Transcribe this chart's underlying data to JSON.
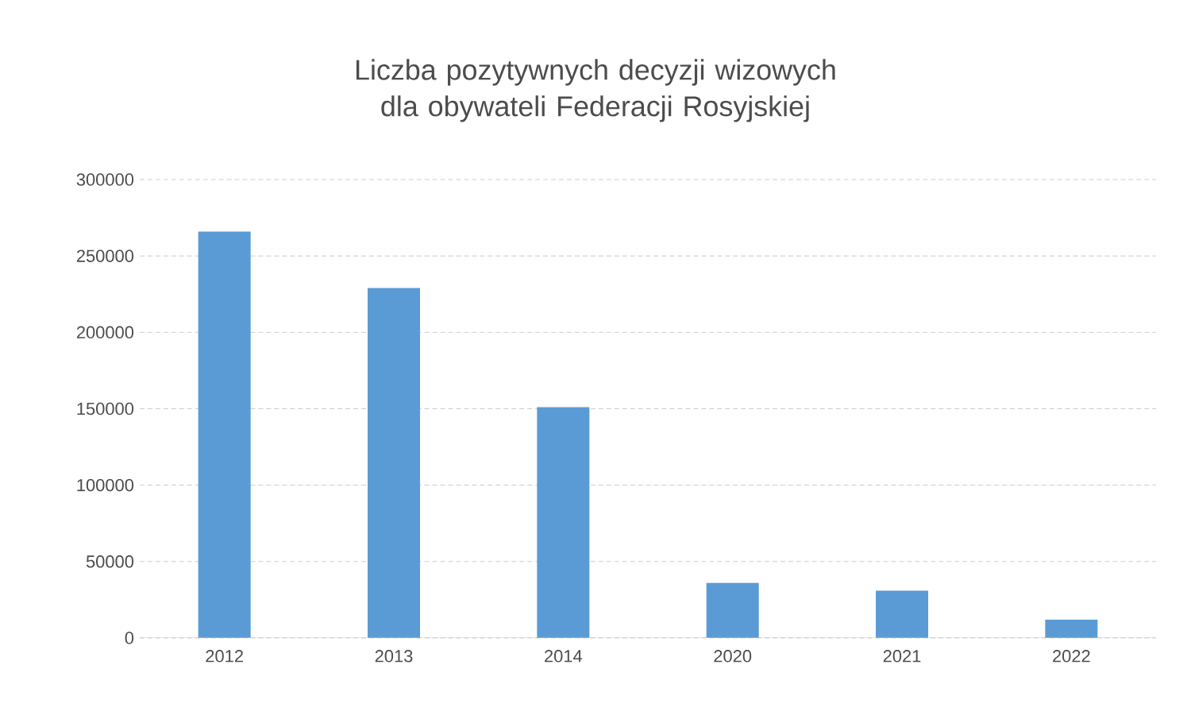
{
  "chart_data": {
    "type": "bar",
    "title": "Liczba pozytywnych decyzji wizowych dla obywateli Federacji Rosyjskiej",
    "categories": [
      "2012",
      "2013",
      "2014",
      "2020",
      "2021",
      "2022"
    ],
    "values": [
      266000,
      229000,
      151000,
      36000,
      31000,
      12000
    ],
    "color": "#5b9bd5",
    "ylim": [
      0,
      300000
    ],
    "yticks": [
      0,
      50000,
      100000,
      150000,
      200000,
      250000,
      300000
    ],
    "grid": "y"
  }
}
